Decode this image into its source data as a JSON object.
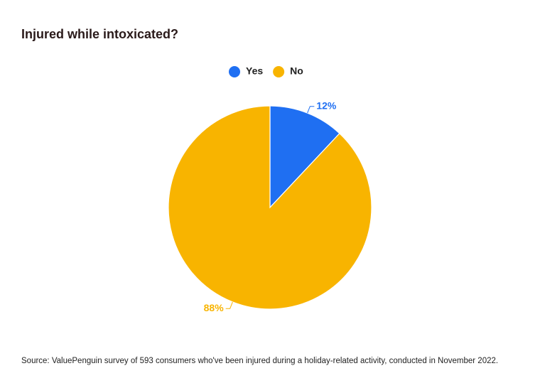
{
  "chart_data": {
    "type": "pie",
    "title": "Injured while intoxicated?",
    "categories": [
      "Yes",
      "No"
    ],
    "values": [
      12,
      88
    ],
    "value_labels": [
      "12%",
      "88%"
    ],
    "colors": [
      "#1f6ff2",
      "#f8b400"
    ],
    "legend": "top",
    "source": "Source: ValuePenguin survey of 593 consumers who've been injured during a holiday-related activity, conducted in November 2022."
  }
}
